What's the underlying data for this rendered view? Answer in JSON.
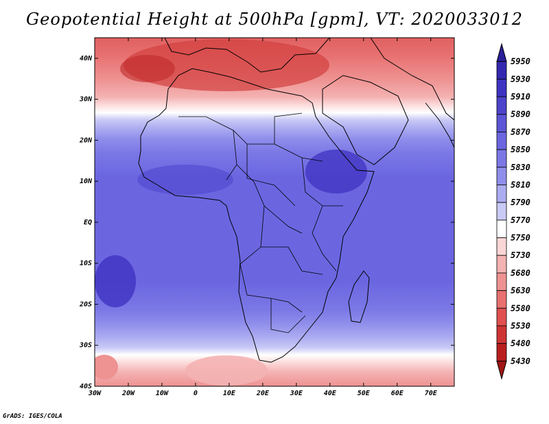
{
  "title": "Geopotential Height at 500hPa [gpm], VT: 2020033012",
  "credit": "GrADS: IGES/COLA",
  "map": {
    "lat_ticks": [
      "40N",
      "30N",
      "20N",
      "10N",
      "EQ",
      "10S",
      "20S",
      "30S",
      "40S"
    ],
    "lon_ticks": [
      "30W",
      "20W",
      "10W",
      "0",
      "10E",
      "20E",
      "30E",
      "40E",
      "50E",
      "60E",
      "70E"
    ],
    "lat_range": [
      -40,
      45
    ],
    "lon_range": [
      -30,
      77
    ]
  },
  "colorbar": {
    "levels": [
      "5950",
      "5930",
      "5910",
      "5890",
      "5870",
      "5850",
      "5830",
      "5810",
      "5790",
      "5770",
      "5750",
      "5730",
      "5680",
      "5630",
      "5580",
      "5530",
      "5480",
      "5430"
    ],
    "colors": [
      "#2a1f9a",
      "#3328b0",
      "#3f33c2",
      "#4d44cc",
      "#5c55d6",
      "#6b66e0",
      "#7b78e6",
      "#8f8eeb",
      "#acacf1",
      "#cacaf6",
      "#ffffff",
      "#fbd6d6",
      "#f4b2b2",
      "#ee9292",
      "#e87070",
      "#e05050",
      "#cf3434",
      "#b91e1e",
      "#a01414"
    ]
  }
}
